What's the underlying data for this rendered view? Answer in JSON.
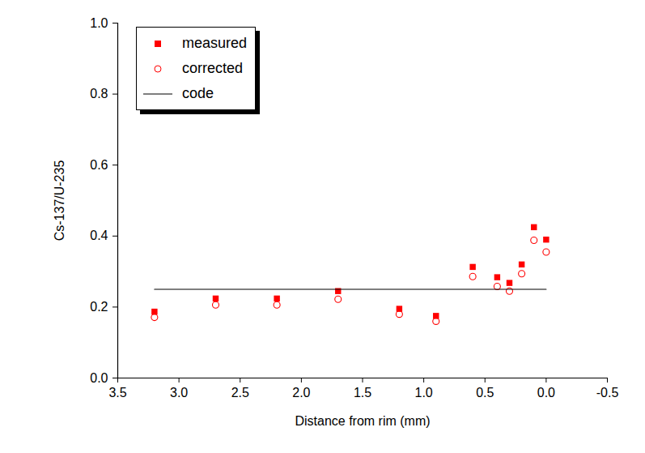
{
  "chart_data": {
    "type": "scatter",
    "x_label": "Distance from rim (mm)",
    "y_label": "Cs-137/U-235",
    "xlim": [
      3.5,
      -0.5
    ],
    "ylim": [
      0,
      1
    ],
    "xticks": [
      3.5,
      {
        "value": 3,
        "label": "3.0"
      },
      2.5,
      {
        "value": 2,
        "label": "2.0"
      },
      1.5,
      {
        "value": 1,
        "label": "1.0"
      },
      0.5,
      {
        "value": 0,
        "label": "0.0"
      },
      -0.5
    ],
    "yticks": [
      {
        "value": 0,
        "label": "0.0"
      },
      0.2,
      0.4,
      0.6,
      0.8,
      {
        "value": 1,
        "label": "1.0"
      }
    ],
    "legend": "top-left",
    "series": [
      {
        "name": "measured",
        "type": "scatter",
        "marker": "square",
        "color": "#ff0000",
        "x": [
          3.2,
          2.7,
          2.2,
          1.7,
          1.2,
          0.9,
          0.6,
          0.4,
          0.3,
          0.2,
          0.1,
          0.0
        ],
        "values": [
          0.187,
          0.224,
          0.224,
          0.245,
          0.195,
          0.175,
          0.313,
          0.284,
          0.268,
          0.32,
          0.425,
          0.39
        ]
      },
      {
        "name": "corrected",
        "type": "scatter",
        "marker": "circle",
        "color": "#ff0000",
        "x": [
          3.2,
          2.7,
          2.2,
          1.7,
          1.2,
          0.9,
          0.6,
          0.4,
          0.3,
          0.2,
          0.1,
          0.0
        ],
        "values": [
          0.171,
          0.206,
          0.206,
          0.222,
          0.18,
          0.16,
          0.286,
          0.258,
          0.245,
          0.294,
          0.388,
          0.355
        ]
      },
      {
        "name": "code",
        "type": "line",
        "line_style": "solid",
        "color": "#000000",
        "x": [
          3.2,
          0.0
        ],
        "values": [
          0.25,
          0.25
        ]
      }
    ]
  }
}
